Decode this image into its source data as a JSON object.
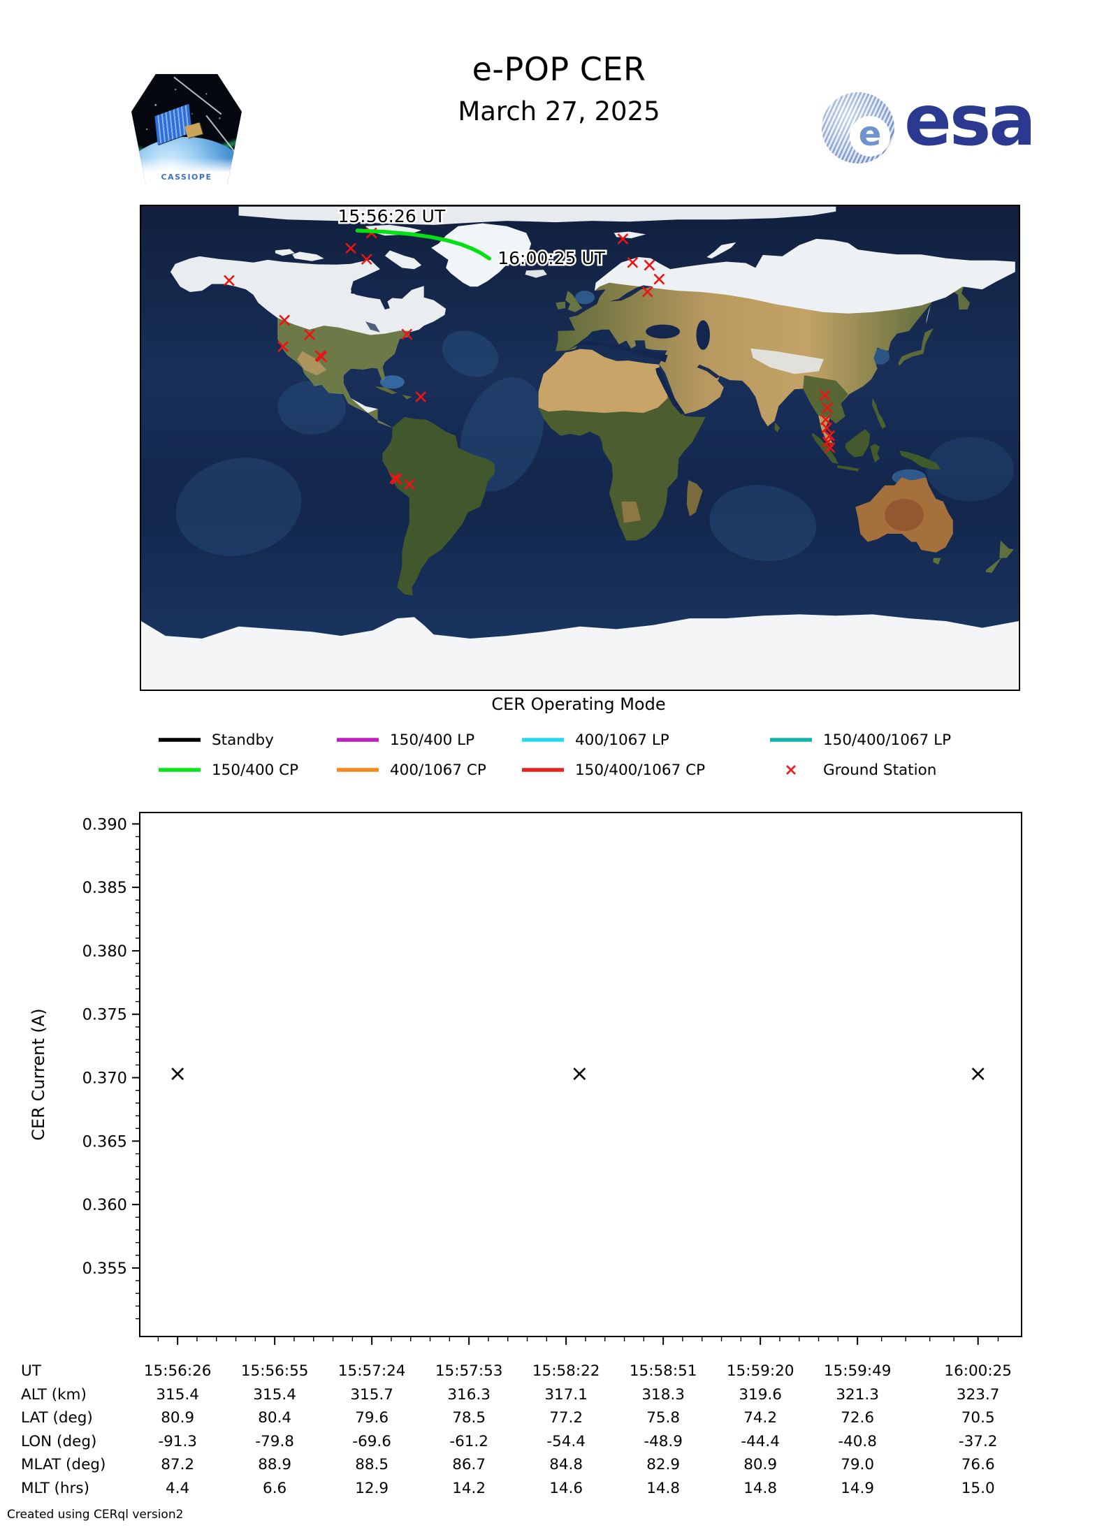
{
  "header": {
    "title": "e-POP CER",
    "date": "March 27, 2025",
    "esa_logo_text": "esa",
    "esa_logo_e": "e",
    "mission_patch_text": "CASSIOPE"
  },
  "map": {
    "caption": "CER Operating Mode",
    "track": {
      "start_label": "15:56:26 UT",
      "end_label": "16:00:25 UT",
      "color": "#05e015",
      "points": [
        [
          80.9,
          -91.3
        ],
        [
          80.4,
          -79.8
        ],
        [
          79.6,
          -69.6
        ],
        [
          78.5,
          -61.2
        ],
        [
          77.2,
          -54.4
        ],
        [
          75.8,
          -48.9
        ],
        [
          74.2,
          -44.4
        ],
        [
          72.6,
          -40.8
        ],
        [
          70.5,
          -37.2
        ]
      ]
    },
    "station_color": "#ec1313",
    "ground_stations": [
      [
        80.0,
        -85.5
      ],
      [
        74.3,
        -94.0
      ],
      [
        70.2,
        -87.5
      ],
      [
        62.3,
        -143.9
      ],
      [
        77.8,
        17.6
      ],
      [
        69.0,
        21.6
      ],
      [
        68.0,
        28.5
      ],
      [
        62.8,
        32.5
      ],
      [
        58.1,
        27.7
      ],
      [
        47.5,
        -121.2
      ],
      [
        42.1,
        -110.9
      ],
      [
        37.7,
        -121.8
      ],
      [
        34.3,
        -106.5
      ],
      [
        33.9,
        -106.0
      ],
      [
        42.3,
        -71.0
      ],
      [
        19.0,
        -65.3
      ],
      [
        19.6,
        100.5
      ],
      [
        14.9,
        101.5
      ],
      [
        10.5,
        100.8
      ],
      [
        7.4,
        101.2
      ],
      [
        4.5,
        102.4
      ],
      [
        2.2,
        101.7
      ],
      [
        0.1,
        102.5
      ],
      [
        -11.3,
        -75.9
      ],
      [
        -11.7,
        -75.2
      ],
      [
        -13.6,
        -69.9
      ]
    ]
  },
  "legend": {
    "items": [
      {
        "label": "Standby",
        "color": "#000000",
        "marker": "line"
      },
      {
        "label": "150/400 LP",
        "color": "#bb1fbb",
        "marker": "line"
      },
      {
        "label": "400/1067 LP",
        "color": "#29d8ef",
        "marker": "line"
      },
      {
        "label": "150/400/1067 LP",
        "color": "#17b3ab",
        "marker": "line"
      },
      {
        "label": "150/400 CP",
        "color": "#0ae615",
        "marker": "line"
      },
      {
        "label": "400/1067 CP",
        "color": "#f8871e",
        "marker": "line"
      },
      {
        "label": "150/400/1067 CP",
        "color": "#e8221f",
        "marker": "line"
      },
      {
        "label": "Ground Station",
        "color": "#e8221f",
        "marker": "x"
      }
    ]
  },
  "chart_data": {
    "type": "scatter",
    "ylabel": "CER Current (A)",
    "marker": "x",
    "marker_color": "#000000",
    "grid": false,
    "ylim": [
      0.3496,
      0.3909
    ],
    "y_major_ticks": [
      0.355,
      0.36,
      0.365,
      0.37,
      0.375,
      0.38,
      0.385,
      0.39
    ],
    "y_minor_step": 0.001,
    "xlim_seconds": [
      -11.3,
      252
    ],
    "x_tick_labels": [
      "15:56:26",
      "15:56:55",
      "15:57:24",
      "15:57:53",
      "15:58:22",
      "15:58:51",
      "15:59:20",
      "15:59:49",
      "16:00:25"
    ],
    "x_tick_seconds": [
      0,
      29,
      58,
      87,
      116,
      145,
      174,
      203,
      239
    ],
    "points": [
      {
        "ut": "15:56:26",
        "t": 0,
        "y": 0.3703
      },
      {
        "ut": "15:58:26",
        "t": 120,
        "y": 0.3703
      },
      {
        "ut": "16:00:25",
        "t": 239,
        "y": 0.3703
      }
    ]
  },
  "table": {
    "rows": [
      {
        "label": "UT",
        "values": [
          "15:56:26",
          "15:56:55",
          "15:57:24",
          "15:57:53",
          "15:58:22",
          "15:58:51",
          "15:59:20",
          "15:59:49",
          "16:00:25"
        ]
      },
      {
        "label": "ALT (km)",
        "values": [
          "315.4",
          "315.4",
          "315.7",
          "316.3",
          "317.1",
          "318.3",
          "319.6",
          "321.3",
          "323.7"
        ]
      },
      {
        "label": "LAT (deg)",
        "values": [
          "80.9",
          "80.4",
          "79.6",
          "78.5",
          "77.2",
          "75.8",
          "74.2",
          "72.6",
          "70.5"
        ]
      },
      {
        "label": "LON (deg)",
        "values": [
          "-91.3",
          "-79.8",
          "-69.6",
          "-61.2",
          "-54.4",
          "-48.9",
          "-44.4",
          "-40.8",
          "-37.2"
        ]
      },
      {
        "label": "MLAT (deg)",
        "values": [
          "87.2",
          "88.9",
          "88.5",
          "86.7",
          "84.8",
          "82.9",
          "80.9",
          "79.0",
          "76.6"
        ]
      },
      {
        "label": "MLT (hrs)",
        "values": [
          "4.4",
          "6.6",
          "12.9",
          "14.2",
          "14.6",
          "14.8",
          "14.8",
          "14.9",
          "15.0"
        ]
      }
    ]
  },
  "footer": "Created using CERql version2"
}
